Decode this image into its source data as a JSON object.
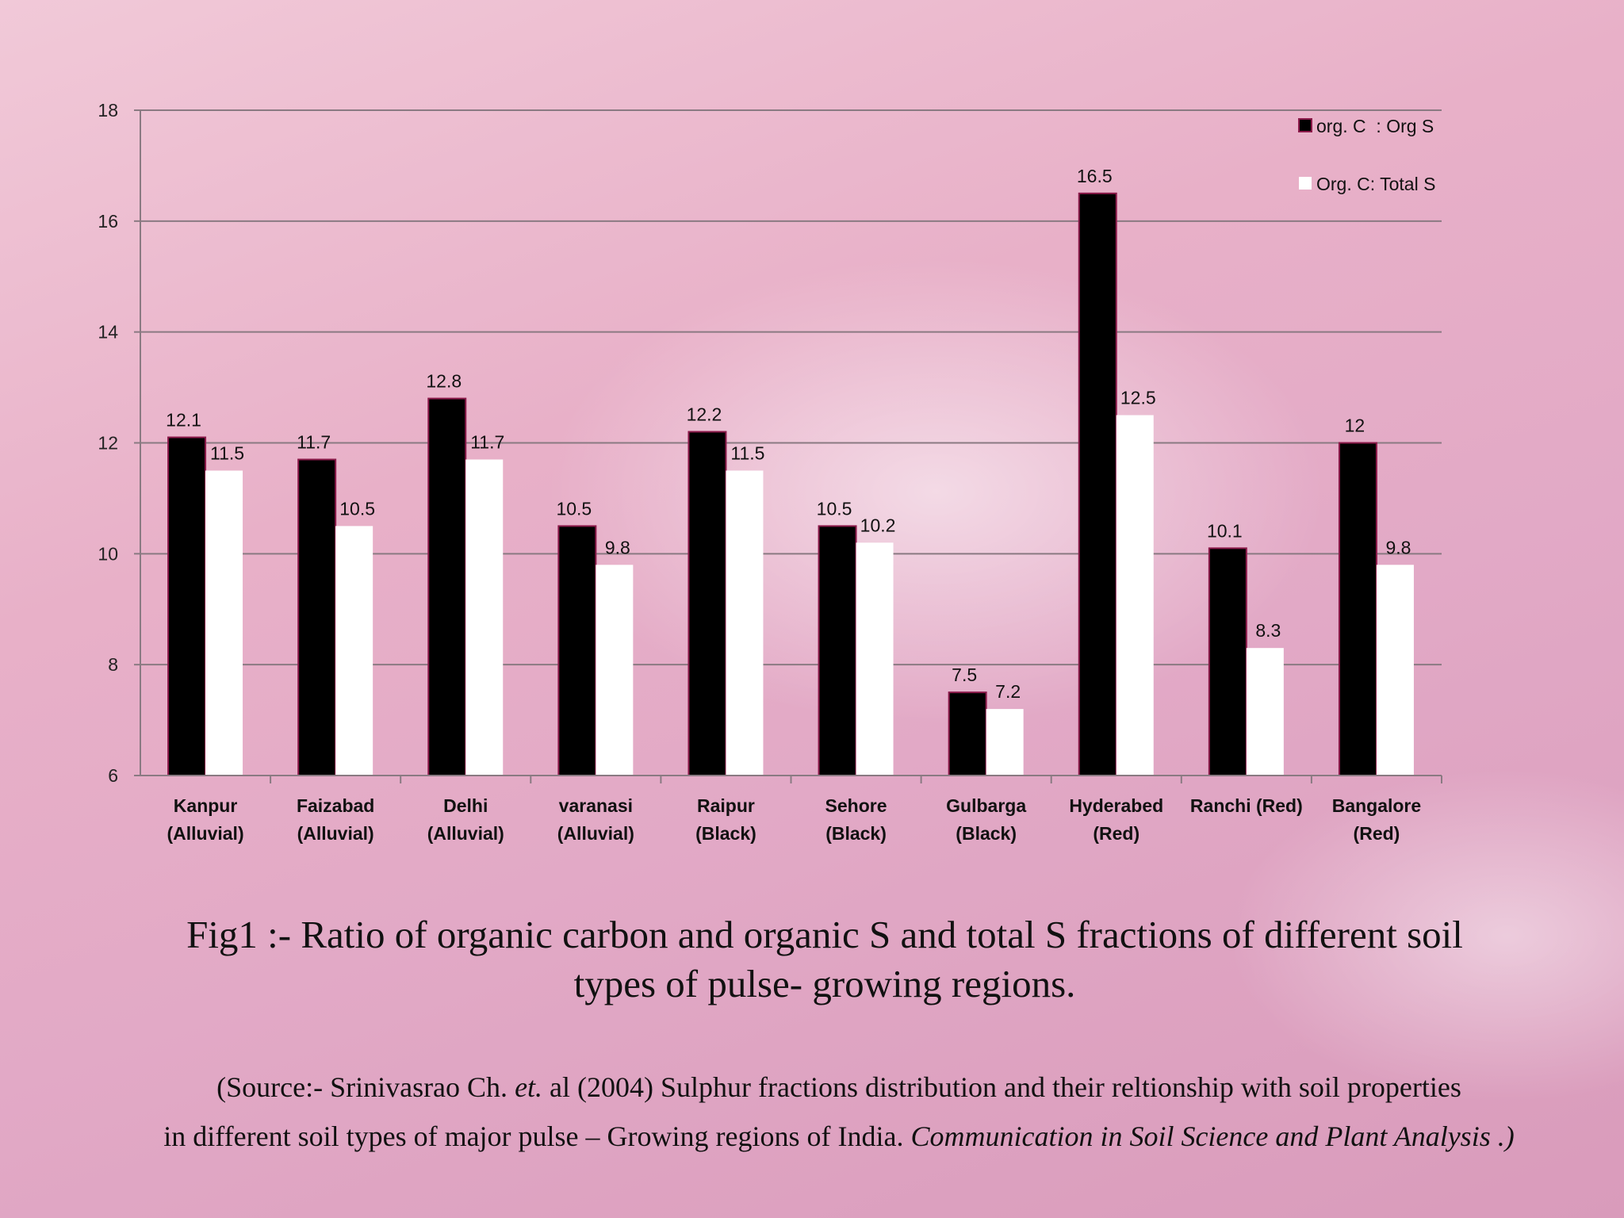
{
  "chart_data": {
    "type": "bar",
    "title": "",
    "xlabel": "",
    "ylabel": "",
    "ylim": [
      6,
      18
    ],
    "yticks": [
      "6",
      "8",
      "10",
      "12",
      "14",
      "16",
      "18"
    ],
    "grid": true,
    "legend_position": "top-right",
    "categories": [
      [
        "Kanpur",
        "(Alluvial)"
      ],
      [
        "Faizabad",
        "(Alluvial)"
      ],
      [
        "Delhi",
        "(Alluvial)"
      ],
      [
        "varanasi",
        "(Alluvial)"
      ],
      [
        "Raipur",
        "(Black)"
      ],
      [
        "Sehore",
        "(Black)"
      ],
      [
        "Gulbarga",
        "(Black)"
      ],
      [
        "Hyderabed",
        "(Red)"
      ],
      [
        "Ranchi (Red)"
      ],
      [
        "Bangalore",
        "(Red)"
      ]
    ],
    "series": [
      {
        "name": "org. C  : Org S",
        "color": "#000000",
        "values": [
          12.1,
          11.7,
          12.8,
          10.5,
          12.2,
          10.5,
          7.5,
          16.5,
          10.1,
          12
        ]
      },
      {
        "name": "Org. C: Total S",
        "color": "#ffffff",
        "values": [
          11.5,
          10.5,
          11.7,
          9.8,
          11.5,
          10.2,
          7.2,
          12.5,
          8.3,
          9.8
        ]
      }
    ]
  },
  "caption": {
    "line1": "Fig1 :- Ratio of organic carbon and organic S and total S fractions of different soil",
    "line2": "types of pulse- growing regions."
  },
  "source": {
    "part1": "(Source:- Srinivasrao Ch. ",
    "etal_italic": "et.",
    "part2": " al   (2004) Sulphur fractions distribution and their reltionship with soil properties",
    "part3": "in different soil types  of major   pulse – Growing regions of India. ",
    "journal_italic": "Communication in Soil Science and Plant Analysis .)"
  }
}
